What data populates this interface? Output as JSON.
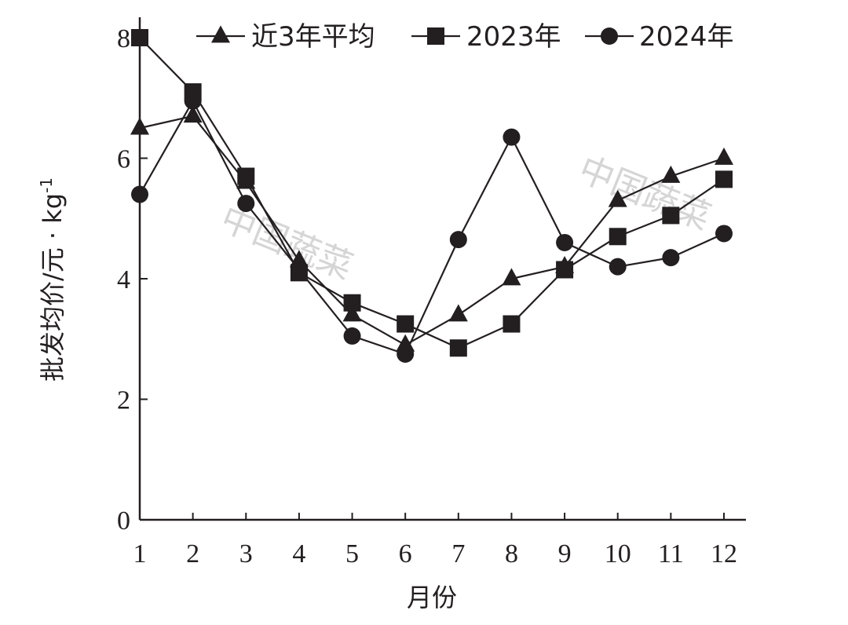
{
  "chart_data": {
    "type": "line",
    "title": "",
    "xlabel": "月份",
    "ylabel_main": "批发均价/元 · kg",
    "ylabel_sup": "-1",
    "x": [
      1,
      2,
      3,
      4,
      5,
      6,
      7,
      8,
      9,
      10,
      11,
      12
    ],
    "xticks": [
      "1",
      "2",
      "3",
      "4",
      "5",
      "6",
      "7",
      "8",
      "9",
      "10",
      "11",
      "12"
    ],
    "yticks": [
      "0",
      "2",
      "4",
      "6",
      "8"
    ],
    "ylim": [
      0,
      8
    ],
    "grid": false,
    "legend_position": "top",
    "series": [
      {
        "name": "近3年平均",
        "marker": "triangle",
        "values": [
          6.5,
          6.7,
          5.6,
          4.3,
          3.4,
          2.9,
          3.4,
          4.0,
          4.2,
          5.3,
          5.7,
          6.0
        ]
      },
      {
        "name": "2023年",
        "marker": "square",
        "values": [
          8.0,
          7.1,
          5.7,
          4.1,
          3.6,
          3.25,
          2.85,
          3.25,
          4.15,
          4.7,
          5.05,
          5.65
        ]
      },
      {
        "name": "2024年",
        "marker": "circle",
        "values": [
          5.4,
          6.95,
          5.25,
          4.15,
          3.05,
          2.75,
          4.65,
          6.35,
          4.6,
          4.2,
          4.35,
          4.75
        ]
      }
    ]
  },
  "style": {
    "ink_color": "#231f20",
    "watermark_color": "#c8c8c8"
  },
  "watermark": {
    "text": "中国蔬菜"
  }
}
